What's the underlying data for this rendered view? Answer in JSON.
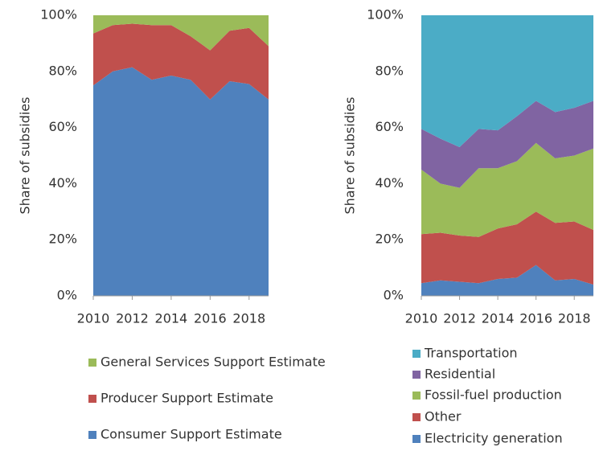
{
  "chart_data": [
    {
      "type": "stacked_area",
      "y_label": "Share of subsidies",
      "x": [
        2010,
        2011,
        2012,
        2013,
        2014,
        2015,
        2016,
        2017,
        2018,
        2019
      ],
      "xlim": [
        2010,
        2019
      ],
      "xticks": [
        2010,
        2012,
        2014,
        2016,
        2018
      ],
      "ylim": [
        0,
        100
      ],
      "yticks": [
        {
          "value": 0,
          "label": "0%"
        },
        {
          "value": 20,
          "label": "20%"
        },
        {
          "value": 40,
          "label": "40%"
        },
        {
          "value": 60,
          "label": "60%"
        },
        {
          "value": 80,
          "label": "80%"
        },
        {
          "value": 100,
          "label": "100%"
        }
      ],
      "series": [
        {
          "name": "Consumer Support Estimate",
          "color": "#4f81bd",
          "values": [
            75,
            80,
            81.5,
            77,
            78.5,
            77,
            70,
            76.5,
            75.5,
            70
          ]
        },
        {
          "name": "Producer Support Estimate",
          "color": "#c0504d",
          "values": [
            18.5,
            16.5,
            15.5,
            19.5,
            18,
            15.5,
            17.5,
            18,
            20,
            19
          ]
        },
        {
          "name": "General Services Support Estimate",
          "color": "#9bbb59",
          "values": [
            6.5,
            3.5,
            3,
            3.5,
            3.5,
            7.5,
            12.5,
            5.5,
            4.5,
            11
          ]
        }
      ]
    },
    {
      "type": "stacked_area",
      "y_label": "Share of subsidies",
      "x": [
        2010,
        2011,
        2012,
        2013,
        2014,
        2015,
        2016,
        2017,
        2018,
        2019
      ],
      "xlim": [
        2010,
        2019
      ],
      "xticks": [
        2010,
        2012,
        2014,
        2016,
        2018
      ],
      "ylim": [
        0,
        100
      ],
      "yticks": [
        {
          "value": 0,
          "label": "0%"
        },
        {
          "value": 20,
          "label": "20%"
        },
        {
          "value": 40,
          "label": "40%"
        },
        {
          "value": 60,
          "label": "60%"
        },
        {
          "value": 80,
          "label": "80%"
        },
        {
          "value": 100,
          "label": "100%"
        }
      ],
      "series": [
        {
          "name": "Electricity generation",
          "color": "#4f81bd",
          "values": [
            4.5,
            5.5,
            5,
            4.5,
            6,
            6.5,
            11,
            5.5,
            6,
            4
          ]
        },
        {
          "name": "Other",
          "color": "#c0504d",
          "values": [
            17.5,
            17,
            16.5,
            16.5,
            18,
            19,
            19,
            20.5,
            20.5,
            19.5
          ]
        },
        {
          "name": "Fossil-fuel production",
          "color": "#9bbb59",
          "values": [
            23,
            17.5,
            17,
            24.5,
            21.5,
            22.5,
            24.5,
            23,
            23.5,
            29
          ]
        },
        {
          "name": "Residential",
          "color": "#8064a2",
          "values": [
            14.5,
            16,
            14.5,
            14,
            13.5,
            16,
            15,
            16.5,
            17,
            17
          ]
        },
        {
          "name": "Transportation",
          "color": "#4bacc6",
          "values": [
            40.5,
            44,
            47,
            40.5,
            41,
            36,
            30.5,
            34.5,
            33,
            30.5
          ]
        }
      ]
    }
  ]
}
